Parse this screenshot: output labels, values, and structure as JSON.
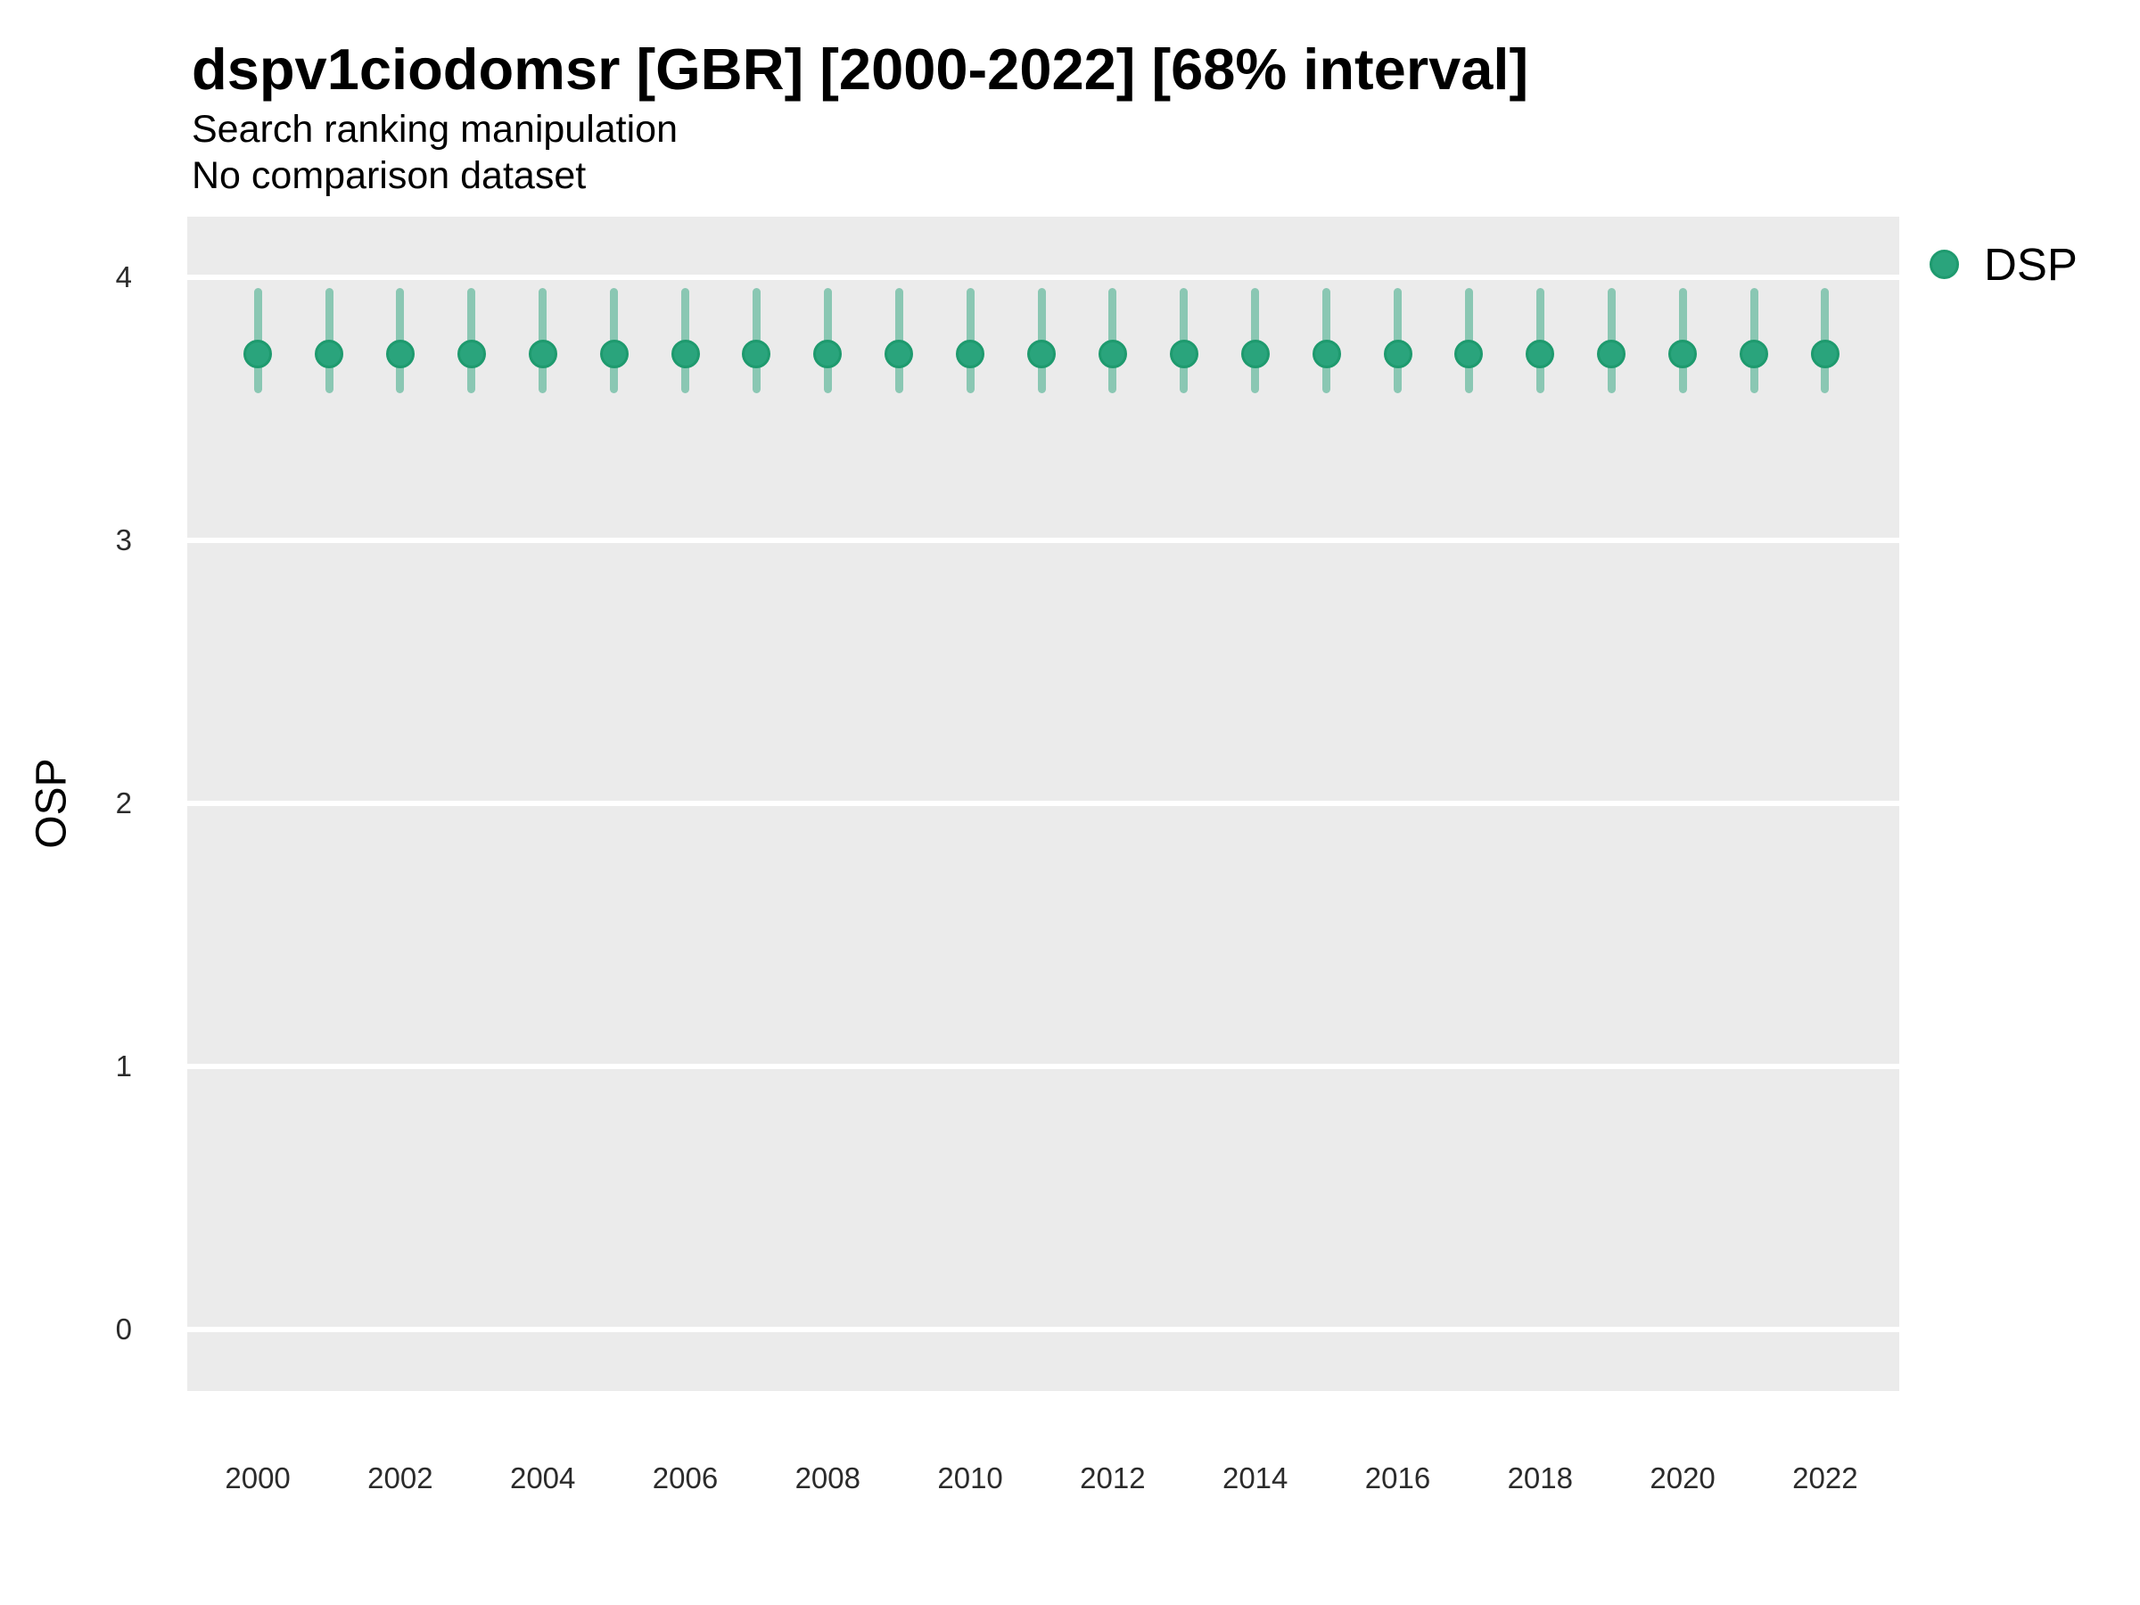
{
  "header": {
    "title": "dspv1ciodomsr [GBR] [2000-2022] [68% interval]",
    "subtitle": "Search ranking manipulation",
    "note": "No comparison dataset"
  },
  "legend": {
    "label": "DSP",
    "position": "right"
  },
  "colors": {
    "point_fill": "#2aa47c",
    "point_border": "#1e9a6e",
    "interval": "rgba(42,164,124,0.5)",
    "panel_background": "#ebebeb",
    "gridline": "#ffffff",
    "title_text": "#000000",
    "tick_text": "#2b2b2b"
  },
  "chart_data": {
    "type": "pointrange",
    "title": "dspv1ciodomsr [GBR] [2000-2022] [68% interval]",
    "subtitle": "Search ranking manipulation",
    "note": "No comparison dataset",
    "interval_level": "68%",
    "xlabel": "",
    "ylabel": "OSP",
    "legend_position": "right",
    "grid": true,
    "x": [
      2000,
      2001,
      2002,
      2003,
      2004,
      2005,
      2006,
      2007,
      2008,
      2009,
      2010,
      2011,
      2012,
      2013,
      2014,
      2015,
      2016,
      2017,
      2018,
      2019,
      2020,
      2021,
      2022
    ],
    "series": [
      {
        "name": "DSP",
        "values": [
          3.71,
          3.71,
          3.71,
          3.71,
          3.71,
          3.71,
          3.71,
          3.71,
          3.71,
          3.71,
          3.71,
          3.71,
          3.71,
          3.71,
          3.71,
          3.71,
          3.71,
          3.71,
          3.71,
          3.71,
          3.71,
          3.71,
          3.71
        ],
        "lower": [
          3.56,
          3.56,
          3.56,
          3.56,
          3.56,
          3.56,
          3.56,
          3.56,
          3.56,
          3.56,
          3.56,
          3.56,
          3.56,
          3.56,
          3.56,
          3.56,
          3.56,
          3.56,
          3.56,
          3.56,
          3.56,
          3.56,
          3.56
        ],
        "upper": [
          3.96,
          3.96,
          3.96,
          3.96,
          3.96,
          3.96,
          3.96,
          3.96,
          3.96,
          3.96,
          3.96,
          3.96,
          3.96,
          3.96,
          3.96,
          3.96,
          3.96,
          3.96,
          3.96,
          3.96,
          3.96,
          3.96,
          3.96
        ]
      }
    ],
    "x_ticks": [
      2000,
      2002,
      2004,
      2006,
      2008,
      2010,
      2012,
      2014,
      2016,
      2018,
      2020,
      2022
    ],
    "y_ticks": [
      0,
      1,
      2,
      3,
      4
    ],
    "xlim": [
      1999.01,
      2023.04
    ],
    "ylim": [
      -0.234,
      4.2305
    ]
  }
}
